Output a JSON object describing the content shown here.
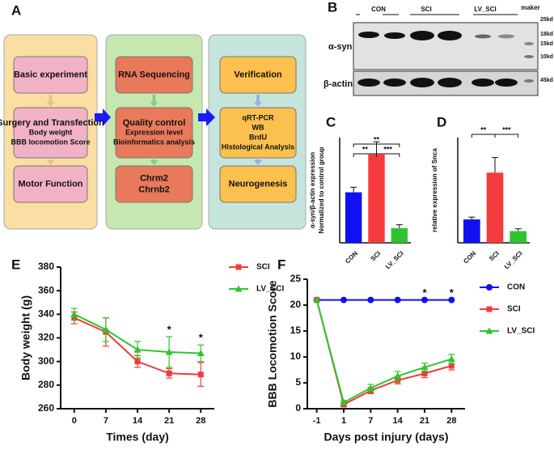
{
  "panel_labels": [
    "A",
    "B",
    "C",
    "D",
    "E",
    "F"
  ],
  "diagram": {
    "columns": [
      {
        "boxes": [
          [
            "Basic experiment"
          ],
          [
            "Surgery and Transfection",
            "Body weight",
            "BBB locomotion Score"
          ],
          [
            "Motor Function"
          ]
        ]
      },
      {
        "boxes": [
          [
            "RNA Sequencing"
          ],
          [
            "Quality control",
            "Expression level",
            "Bioinformatics analysis"
          ],
          [
            "Chrm2",
            "Chrnb2"
          ]
        ]
      },
      {
        "boxes": [
          [
            "Verification"
          ],
          [
            "qRT-PCR",
            "WB",
            "BrdU",
            "Histological Analysis"
          ],
          [
            "Neurogenesis"
          ]
        ]
      }
    ]
  },
  "blot": {
    "groups": [
      "CON",
      "SCI",
      "LV_SCI",
      "maker"
    ],
    "markers": [
      "25kd",
      "18kd",
      "15kd",
      "10kd",
      "45kd"
    ],
    "rows": [
      "α-syn",
      "β-actin"
    ]
  },
  "chart_data": [
    {
      "type": "bar",
      "y_label": [
        "α-syn/β-actin expression",
        "Normalized to control group"
      ],
      "categories": [
        "CON",
        "SCI",
        "LV_SCI"
      ],
      "values": [
        1.2,
        2.1,
        0.35
      ],
      "errors": [
        0.12,
        0.3,
        0.08
      ],
      "colors": [
        "#1010f0",
        "#f53b3b",
        "#2fc42f"
      ],
      "ylim": [
        0,
        2.5
      ],
      "annotations": [
        "**",
        "**",
        "***"
      ]
    },
    {
      "type": "bar",
      "y_label": "relative expression of Snca",
      "categories": [
        "CON",
        "SCI",
        "LV_SCI"
      ],
      "values": [
        1.0,
        3.0,
        0.5
      ],
      "errors": [
        0.1,
        0.65,
        0.1
      ],
      "colors": [
        "#1010f0",
        "#f53b3b",
        "#2fc42f"
      ],
      "ylim": [
        0,
        4.5
      ],
      "annotations": [
        "**",
        "***"
      ]
    },
    {
      "type": "line",
      "x_label": "Times (day)",
      "y_label": "Body weight (g)",
      "x": [
        0,
        7,
        14,
        21,
        28
      ],
      "xlim": [
        -3,
        31
      ],
      "xticks": [
        0,
        7,
        14,
        21,
        28
      ],
      "ylim": [
        260,
        380
      ],
      "yticks": [
        260,
        280,
        300,
        320,
        340,
        360,
        380
      ],
      "legend": "upper right",
      "series": [
        {
          "name": "SCI",
          "color": "#f03c3c",
          "marker": "square",
          "values": [
            337,
            325,
            300,
            290,
            289
          ],
          "errors": [
            5,
            12,
            5,
            4,
            10
          ]
        },
        {
          "name": "LV_SCI",
          "color": "#2fc42f",
          "marker": "triangle",
          "values": [
            340,
            327,
            310,
            308,
            307
          ],
          "errors": [
            5,
            10,
            7,
            13,
            7
          ]
        }
      ],
      "annotations": [
        {
          "text": "*",
          "x": 21
        },
        {
          "text": "*",
          "x": 28
        }
      ]
    },
    {
      "type": "line",
      "x_label": "Days post injury (days)",
      "y_label": "BBB Locomotion Score",
      "categories": [
        "-1",
        "1",
        "7",
        "14",
        "21",
        "28"
      ],
      "ylim": [
        0,
        25
      ],
      "yticks": [
        0,
        5,
        10,
        15,
        20,
        25
      ],
      "legend": "right",
      "series": [
        {
          "name": "CON",
          "color": "#1010f0",
          "marker": "circle",
          "values": [
            21,
            21,
            21,
            21,
            21,
            21
          ],
          "errors": [
            0,
            0,
            0,
            0,
            0,
            0
          ]
        },
        {
          "name": "SCI",
          "color": "#f03c3c",
          "marker": "square",
          "values": [
            21,
            0.8,
            3.5,
            5.5,
            6.8,
            8.3
          ],
          "errors": [
            0,
            0.4,
            0.6,
            0.7,
            0.8,
            0.8
          ]
        },
        {
          "name": "LV_SCI",
          "color": "#2fc42f",
          "marker": "triangle",
          "values": [
            21,
            1.2,
            4.0,
            6.3,
            8.0,
            9.6
          ],
          "errors": [
            0,
            0.4,
            0.7,
            0.9,
            0.8,
            0.9
          ]
        }
      ],
      "annotations": [
        {
          "text": "*",
          "x": "21"
        },
        {
          "text": "*",
          "x": "28"
        }
      ]
    }
  ]
}
